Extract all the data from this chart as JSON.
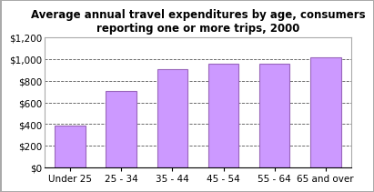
{
  "title": "Average annual travel expenditures by age, consumers\nreporting one or more trips, 2000",
  "categories": [
    "Under 25",
    "25 - 34",
    "35 - 44",
    "45 - 54",
    "55 - 64",
    "65 and over"
  ],
  "values": [
    390,
    710,
    910,
    960,
    960,
    1020
  ],
  "bar_color": "#cc99ff",
  "bar_edgecolor": "#9966bb",
  "ylim": [
    0,
    1200
  ],
  "yticks": [
    0,
    200,
    400,
    600,
    800,
    1000,
    1200
  ],
  "ytick_labels": [
    "$0",
    "$200",
    "$400",
    "$600",
    "$800",
    "$1,000",
    "$1,200"
  ],
  "title_fontsize": 8.5,
  "tick_fontsize": 7.5,
  "background_color": "#ffffff",
  "grid_color": "#555555",
  "bar_width": 0.6,
  "outer_border_color": "#aaaaaa"
}
